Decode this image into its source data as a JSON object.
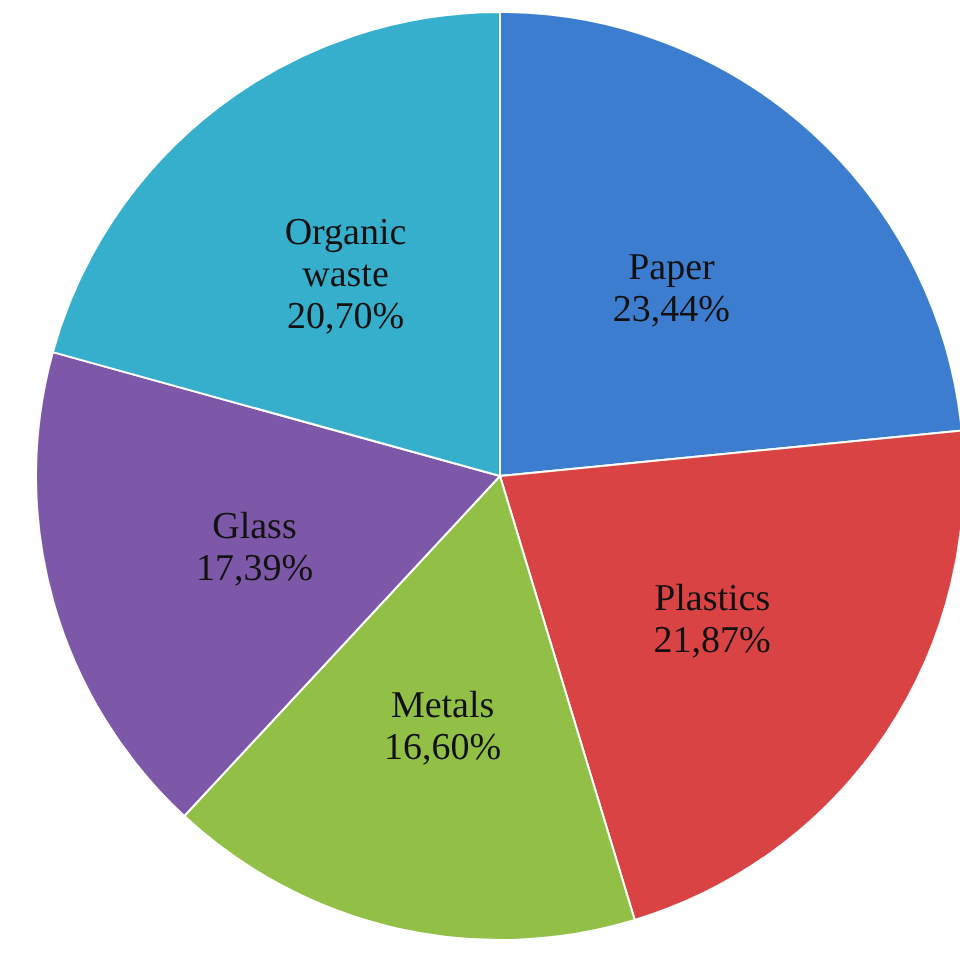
{
  "chart_data": {
    "type": "pie",
    "categories": [
      "Paper",
      "Plastics",
      "Metals",
      "Glass",
      "Organic waste"
    ],
    "values": [
      23.44,
      21.87,
      16.6,
      17.39,
      20.7
    ],
    "value_labels": [
      "23,44%",
      "21,87%",
      "16,60%",
      "17,39%",
      "20,70%"
    ],
    "colors": [
      "#3d7dd0",
      "#d94343",
      "#92c047",
      "#7d58a8",
      "#36afcc"
    ]
  }
}
